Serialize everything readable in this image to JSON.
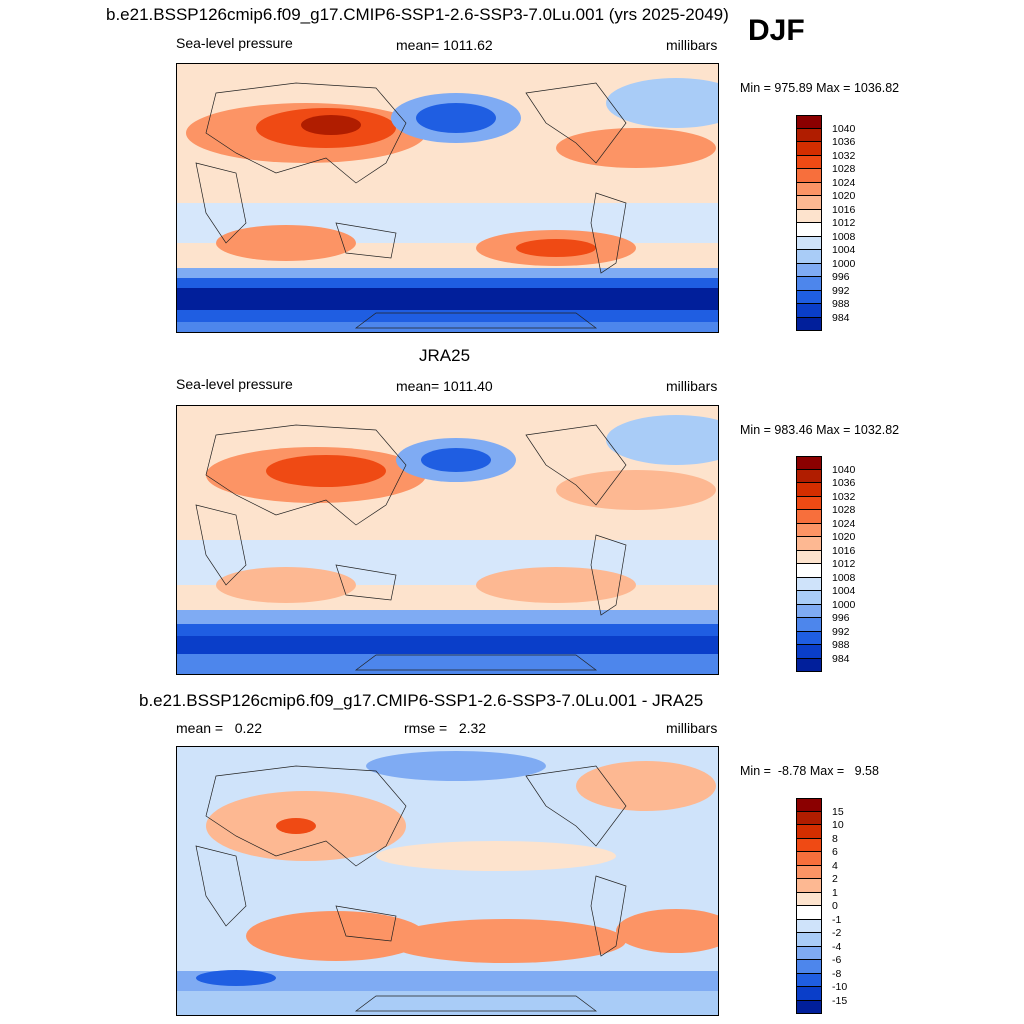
{
  "season": "DJF",
  "panels": [
    {
      "title": "b.e21.BSSP126cmip6.f09_g17.CMIP6-SSP1-2.6-SSP3-7.0Lu.001 (yrs 2025-2049)",
      "left_text": "Sea-level pressure",
      "center_text": "mean= 1011.62",
      "right_text": "millibars",
      "minmax": "Min = 975.89 Max = 1036.82"
    },
    {
      "title": "JRA25",
      "left_text": "Sea-level pressure",
      "center_text": "mean= 1011.40",
      "right_text": "millibars",
      "minmax": "Min = 983.46 Max = 1032.82"
    },
    {
      "title": "b.e21.BSSP126cmip6.f09_g17.CMIP6-SSP1-2.6-SSP3-7.0Lu.001 - JRA25",
      "left_text": "mean =   0.22",
      "center_text": "rmse =   2.32",
      "right_text": "millibars",
      "minmax": "Min =  -8.78 Max =   9.58"
    }
  ],
  "colorbars": {
    "pressure": {
      "labels": [
        "1040",
        "1036",
        "1032",
        "1028",
        "1024",
        "1020",
        "1016",
        "1012",
        "1008",
        "1004",
        "1000",
        "996",
        "992",
        "988",
        "984"
      ],
      "colors": [
        "#8b0000",
        "#b01d00",
        "#d42e00",
        "#ef4a14",
        "#f76f3c",
        "#fc9465",
        "#fdb892",
        "#fde3cd",
        "#ffffff",
        "#cfe3fa",
        "#a9ccf7",
        "#7fabf3",
        "#4d86ec",
        "#1f5ee2",
        "#0a3ec9",
        "#011f9b"
      ]
    },
    "difference": {
      "labels": [
        "15",
        "10",
        "8",
        "6",
        "4",
        "2",
        "1",
        "0",
        "-1",
        "-2",
        "-4",
        "-6",
        "-8",
        "-10",
        "-15"
      ],
      "colors": [
        "#8b0000",
        "#b01d00",
        "#d42e00",
        "#ef4a14",
        "#f76f3c",
        "#fc9465",
        "#fdb892",
        "#fde3cd",
        "#ffffff",
        "#cfe3fa",
        "#a9ccf7",
        "#7fabf3",
        "#4d86ec",
        "#1f5ee2",
        "#0a3ec9",
        "#011f9b"
      ]
    }
  },
  "chart_data": [
    {
      "type": "heatmap",
      "title": "b.e21.BSSP126cmip6.f09_g17.CMIP6-SSP1-2.6-SSP3-7.0Lu.001 (yrs 2025-2049)",
      "variable": "Sea-level pressure",
      "units": "millibars",
      "season": "DJF",
      "mean": 1011.62,
      "min": 975.89,
      "max": 1036.82,
      "contour_levels": [
        984,
        988,
        992,
        996,
        1000,
        1004,
        1008,
        1012,
        1016,
        1020,
        1024,
        1028,
        1032,
        1036,
        1040
      ]
    },
    {
      "type": "heatmap",
      "title": "JRA25",
      "variable": "Sea-level pressure",
      "units": "millibars",
      "mean": 1011.4,
      "min": 983.46,
      "max": 1032.82,
      "contour_levels": [
        984,
        988,
        992,
        996,
        1000,
        1004,
        1008,
        1012,
        1016,
        1020,
        1024,
        1028,
        1032,
        1036,
        1040
      ]
    },
    {
      "type": "heatmap",
      "title": "b.e21.BSSP126cmip6.f09_g17.CMIP6-SSP1-2.6-SSP3-7.0Lu.001 - JRA25",
      "units": "millibars",
      "mean": 0.22,
      "rmse": 2.32,
      "min": -8.78,
      "max": 9.58,
      "contour_levels": [
        -15,
        -10,
        -8,
        -6,
        -4,
        -2,
        -1,
        0,
        1,
        2,
        4,
        6,
        8,
        10,
        15
      ]
    }
  ]
}
